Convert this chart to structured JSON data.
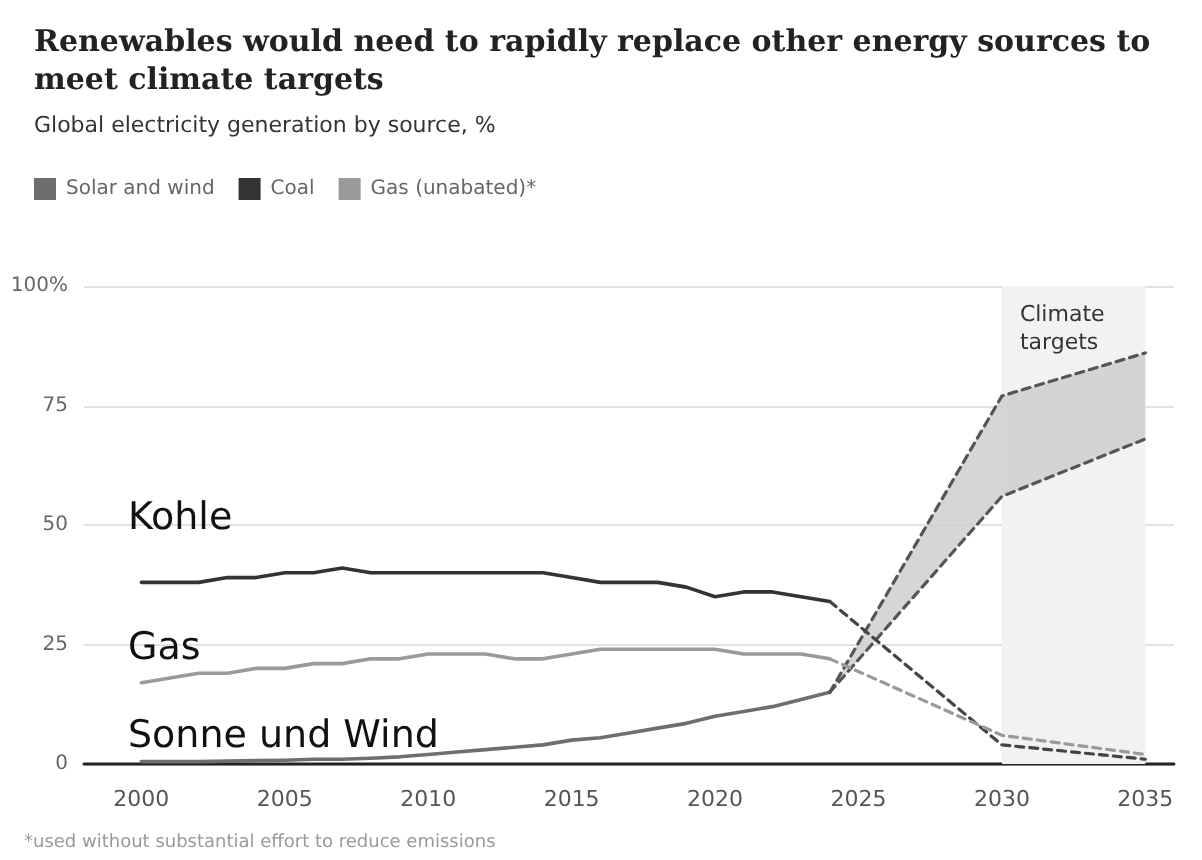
{
  "chart_data": {
    "type": "line",
    "title": "Renewables would need to rapidly replace other energy sources to meet climate targets",
    "subtitle": "Global electricity generation by source, %",
    "x": [
      2000,
      2001,
      2002,
      2003,
      2004,
      2005,
      2006,
      2007,
      2008,
      2009,
      2010,
      2011,
      2012,
      2013,
      2014,
      2015,
      2016,
      2017,
      2018,
      2019,
      2020,
      2021,
      2022,
      2023,
      2024
    ],
    "series": [
      {
        "name": "Solar and wind",
        "color": "#6e6e6e",
        "values": [
          0.5,
          0.5,
          0.5,
          0.6,
          0.7,
          0.8,
          1,
          1,
          1.2,
          1.5,
          2,
          2.5,
          3,
          3.5,
          4,
          5,
          5.5,
          6.5,
          7.5,
          8.5,
          10,
          11,
          12,
          13.5,
          15
        ]
      },
      {
        "name": "Coal",
        "color": "#333333",
        "values": [
          38,
          38,
          38,
          39,
          39,
          40,
          40,
          41,
          40,
          40,
          40,
          40,
          40,
          40,
          40,
          39,
          38,
          38,
          38,
          37,
          35,
          36,
          36,
          35,
          34
        ]
      },
      {
        "name": "Gas (unabated)*",
        "color": "#9a9a9a",
        "values": [
          17,
          18,
          19,
          19,
          20,
          20,
          21,
          21,
          22,
          22,
          23,
          23,
          23,
          22,
          22,
          23,
          24,
          24,
          24,
          24,
          24,
          23,
          23,
          23,
          22
        ]
      },
      {
        "color": "#555555",
        "line_style": "dashed",
        "x": [
          2024,
          2030,
          2035
        ],
        "values": [
          15,
          77,
          86
        ]
      },
      {
        "color": "#555555",
        "line_style": "dashed",
        "x": [
          2024,
          2030,
          2035
        ],
        "values": [
          15,
          56,
          68
        ],
        "lower": [
          15,
          56,
          68
        ],
        "upper": [
          15,
          77,
          86
        ]
      },
      {
        "color": "#444444",
        "line_style": "dashed",
        "x": [
          2024,
          2030,
          2035
        ],
        "values": [
          34,
          4,
          1
        ]
      },
      {
        "color": "#9a9a9a",
        "line_style": "dashed",
        "x": [
          2024,
          2030,
          2035
        ],
        "values": [
          22,
          6,
          2
        ]
      }
    ],
    "xlim": [
      1998,
      2036
    ],
    "xticks": [
      2000,
      2005,
      2010,
      2015,
      2020,
      2025,
      2030,
      2035
    ],
    "ylim": [
      0,
      100
    ],
    "yticks": [
      0,
      25,
      50,
      75,
      {
        "value": 100,
        "label": "100%"
      }
    ],
    "grid": "y",
    "legend": "top left",
    "marker": "none",
    "line_style": "solid",
    "bands": [
      {
        "axis": "x",
        "from": 2030,
        "to": 2035,
        "label": "Climate targets",
        "color": "#f2f2f2"
      }
    ],
    "annotations": [
      "Kohle",
      "Gas",
      "Sonne und Wind",
      "*used without substantial effort to reduce emissions"
    ]
  }
}
